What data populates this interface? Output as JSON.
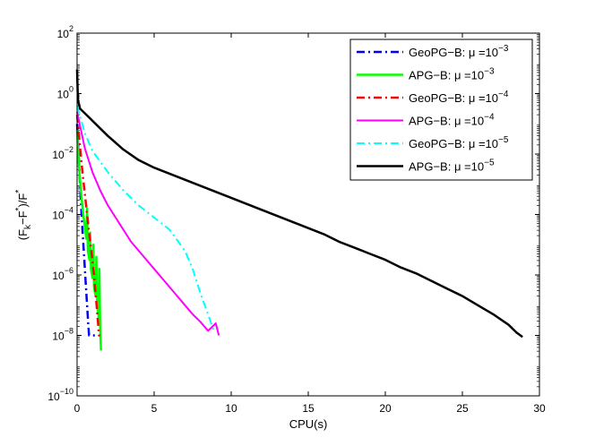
{
  "chart_data": {
    "type": "line",
    "title": "",
    "xlabel": "CPU(s)",
    "ylabel": "(F_k−F^*)/F^*",
    "ylabel_parts": {
      "open": "(F",
      "sub": "k",
      "mid": "−F",
      "sup1": "*",
      "close": ")/F",
      "sup2": "*"
    },
    "y_scale": "log",
    "xlim": [
      0,
      30
    ],
    "ylim_exp": [
      -10,
      2
    ],
    "x_ticks": [
      0,
      5,
      10,
      15,
      20,
      25,
      30
    ],
    "x_tick_labels": [
      "0",
      "5",
      "10",
      "15",
      "20",
      "25",
      "30"
    ],
    "y_tick_exps": [
      -10,
      -8,
      -6,
      -4,
      -2,
      0,
      2
    ],
    "y_tick_base": "10",
    "y_tick_exp_labels": [
      "−10",
      "−8",
      "−6",
      "−4",
      "−2",
      "0",
      "2"
    ],
    "legend_position": "top-right",
    "series": [
      {
        "name": "GeoPG−B: μ =10−3",
        "legend": {
          "method": "GeoPG−B:",
          "mu": "μ =10",
          "exp": "−3"
        },
        "color": "#0000ff",
        "style": "dashdot",
        "width": 2.5,
        "points": [
          [
            0,
            -1
          ],
          [
            0.15,
            -2.6
          ],
          [
            0.25,
            -3.6
          ],
          [
            0.35,
            -4.5
          ],
          [
            0.45,
            -5.3
          ],
          [
            0.55,
            -6.2
          ],
          [
            0.65,
            -7.0
          ],
          [
            0.72,
            -7.6
          ],
          [
            0.78,
            -8.0
          ],
          [
            1.15,
            -8.0
          ]
        ]
      },
      {
        "name": "APG−B: μ =10−3",
        "legend": {
          "method": "APG−B:",
          "mu": "μ =10",
          "exp": "−3"
        },
        "color": "#00ff00",
        "style": "solid",
        "width": 2.5,
        "points": [
          [
            0,
            -1.2
          ],
          [
            0.1,
            -2.2
          ],
          [
            0.2,
            -2.9
          ],
          [
            0.3,
            -3.5
          ],
          [
            0.4,
            -4.0
          ],
          [
            0.5,
            -4.4
          ],
          [
            0.6,
            -4.8
          ],
          [
            0.65,
            -3.8
          ],
          [
            0.7,
            -5.2
          ],
          [
            0.8,
            -5.5
          ],
          [
            0.85,
            -4.6
          ],
          [
            0.9,
            -5.8
          ],
          [
            1.0,
            -6.1
          ],
          [
            1.05,
            -5.0
          ],
          [
            1.1,
            -6.4
          ],
          [
            1.2,
            -6.7
          ],
          [
            1.25,
            -5.4
          ],
          [
            1.3,
            -7.0
          ],
          [
            1.4,
            -7.4
          ],
          [
            1.45,
            -5.8
          ],
          [
            1.5,
            -7.8
          ],
          [
            1.55,
            -8.5
          ]
        ]
      },
      {
        "name": "GeoPG−B: μ =10−4",
        "legend": {
          "method": "GeoPG−B:",
          "mu": "μ =10",
          "exp": "−4"
        },
        "color": "#ff0000",
        "style": "dashdot",
        "width": 2.5,
        "points": [
          [
            0,
            -0.7
          ],
          [
            0.2,
            -1.8
          ],
          [
            0.35,
            -2.6
          ],
          [
            0.5,
            -3.3
          ],
          [
            0.65,
            -4.0
          ],
          [
            0.8,
            -4.7
          ],
          [
            0.95,
            -5.3
          ],
          [
            1.1,
            -6.0
          ],
          [
            1.2,
            -6.6
          ],
          [
            1.3,
            -7.2
          ],
          [
            1.38,
            -7.7
          ],
          [
            1.42,
            -8.0
          ],
          [
            1.5,
            -8.0
          ]
        ]
      },
      {
        "name": "APG−B: μ =10−4",
        "legend": {
          "method": "APG−B:",
          "mu": "μ =10",
          "exp": "−4"
        },
        "color": "#ff00ff",
        "style": "solid",
        "width": 2,
        "points": [
          [
            0,
            -0.6
          ],
          [
            0.5,
            -1.8
          ],
          [
            1.0,
            -2.6
          ],
          [
            1.5,
            -3.2
          ],
          [
            2.0,
            -3.7
          ],
          [
            2.5,
            -4.1
          ],
          [
            3.0,
            -4.5
          ],
          [
            3.5,
            -4.9
          ],
          [
            4.0,
            -5.2
          ],
          [
            4.5,
            -5.5
          ],
          [
            5.0,
            -5.8
          ],
          [
            5.5,
            -6.1
          ],
          [
            6.0,
            -6.4
          ],
          [
            6.5,
            -6.7
          ],
          [
            7.0,
            -7.0
          ],
          [
            7.5,
            -7.3
          ],
          [
            8.0,
            -7.55
          ],
          [
            8.5,
            -7.85
          ],
          [
            9.0,
            -7.6
          ],
          [
            9.2,
            -8.0
          ]
        ]
      },
      {
        "name": "GeoPG−B: μ =10−5",
        "legend": {
          "method": "GeoPG−B:",
          "mu": "μ =10",
          "exp": "−5"
        },
        "color": "#00ffff",
        "style": "dashdot",
        "width": 2,
        "points": [
          [
            0,
            -0.4
          ],
          [
            0.5,
            -1.3
          ],
          [
            1.0,
            -1.9
          ],
          [
            2.0,
            -2.6
          ],
          [
            3.0,
            -3.2
          ],
          [
            4.0,
            -3.7
          ],
          [
            5.0,
            -4.1
          ],
          [
            6.0,
            -4.5
          ],
          [
            7.0,
            -5.2
          ],
          [
            7.5,
            -5.8
          ],
          [
            8.0,
            -6.6
          ],
          [
            8.5,
            -7.3
          ],
          [
            8.9,
            -7.9
          ]
        ]
      },
      {
        "name": "APG−B: μ =10−5",
        "legend": {
          "method": "APG−B:",
          "mu": "μ =10",
          "exp": "−5"
        },
        "color": "#000000",
        "style": "solid",
        "width": 2.5,
        "points": [
          [
            0,
            0.8
          ],
          [
            0.05,
            -0.2
          ],
          [
            0.2,
            -0.5
          ],
          [
            0.5,
            -0.65
          ],
          [
            1.0,
            -0.9
          ],
          [
            2.0,
            -1.4
          ],
          [
            3.0,
            -1.85
          ],
          [
            4.0,
            -2.2
          ],
          [
            5.0,
            -2.45
          ],
          [
            6.0,
            -2.65
          ],
          [
            7.0,
            -2.85
          ],
          [
            8.0,
            -3.05
          ],
          [
            9.0,
            -3.25
          ],
          [
            10.0,
            -3.45
          ],
          [
            11.0,
            -3.65
          ],
          [
            12.0,
            -3.85
          ],
          [
            13.0,
            -4.05
          ],
          [
            14.0,
            -4.25
          ],
          [
            15.0,
            -4.45
          ],
          [
            16.0,
            -4.65
          ],
          [
            17.0,
            -4.9
          ],
          [
            18.0,
            -5.1
          ],
          [
            19.0,
            -5.3
          ],
          [
            20.0,
            -5.5
          ],
          [
            21.0,
            -5.75
          ],
          [
            22.0,
            -5.95
          ],
          [
            23.0,
            -6.2
          ],
          [
            24.0,
            -6.45
          ],
          [
            25.0,
            -6.7
          ],
          [
            26.0,
            -7.0
          ],
          [
            27.0,
            -7.3
          ],
          [
            28.0,
            -7.65
          ],
          [
            28.5,
            -7.9
          ],
          [
            28.9,
            -8.05
          ]
        ]
      }
    ]
  }
}
